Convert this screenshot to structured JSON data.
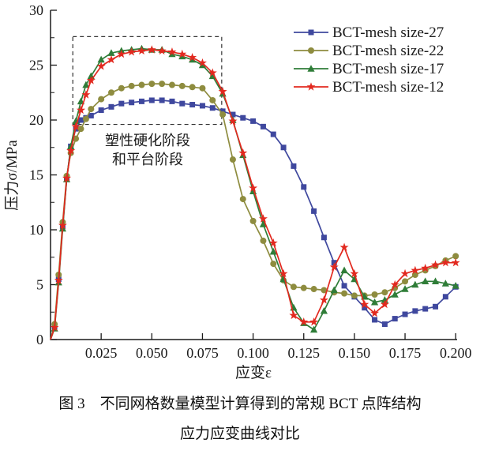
{
  "figure": {
    "caption_line1": "图 3　不同网格数量模型计算得到的常规 BCT 点阵结构",
    "caption_line2": "应力应变曲线对比"
  },
  "chart_data": {
    "type": "line",
    "title": "",
    "xlabel": "应变ε",
    "ylabel": "压力σ/MPa",
    "xlim": [
      0,
      0.2
    ],
    "ylim": [
      0,
      30
    ],
    "grid": false,
    "legend_position": "top-right",
    "text_color": "#1a1a1a",
    "y_ticks": [
      {
        "v": 0,
        "label": "0"
      },
      {
        "v": 5,
        "label": "5"
      },
      {
        "v": 10,
        "label": "10"
      },
      {
        "v": 15,
        "label": "15"
      },
      {
        "v": 20,
        "label": "20"
      },
      {
        "v": 25,
        "label": "25"
      },
      {
        "v": 30,
        "label": "30"
      }
    ],
    "y_minor_step": 2.5,
    "x_ticks": [
      {
        "v": 0.025,
        "label": "0.025"
      },
      {
        "v": 0.05,
        "label": "0.050"
      },
      {
        "v": 0.075,
        "label": "0.075"
      },
      {
        "v": 0.1,
        "label": "0.100"
      },
      {
        "v": 0.125,
        "label": "0.125"
      },
      {
        "v": 0.15,
        "label": "0.150"
      },
      {
        "v": 0.175,
        "label": "0.175"
      },
      {
        "v": 0.2,
        "label": "0.200"
      }
    ],
    "annotation": {
      "text_lines": [
        "塑性硬化阶段",
        "和平台阶段"
      ],
      "box": {
        "x0": 0.011,
        "x1": 0.0845,
        "y0": 19.6,
        "y1": 27.6
      }
    },
    "x": [
      0,
      0.002,
      0.004,
      0.006,
      0.008,
      0.01,
      0.0125,
      0.015,
      0.0175,
      0.02,
      0.025,
      0.03,
      0.035,
      0.04,
      0.045,
      0.05,
      0.055,
      0.06,
      0.065,
      0.07,
      0.075,
      0.08,
      0.085,
      0.09,
      0.095,
      0.1,
      0.105,
      0.11,
      0.115,
      0.12,
      0.125,
      0.13,
      0.135,
      0.14,
      0.145,
      0.15,
      0.155,
      0.16,
      0.165,
      0.17,
      0.175,
      0.18,
      0.185,
      0.19,
      0.195,
      0.2
    ],
    "series": [
      {
        "name": "BCT-mesh size-27",
        "color": "#3f489e",
        "marker": "square",
        "values": [
          0,
          1.2,
          5.5,
          10.3,
          14.6,
          17.6,
          19.2,
          20.0,
          20.2,
          20.4,
          20.9,
          21.2,
          21.5,
          21.6,
          21.7,
          21.8,
          21.8,
          21.7,
          21.5,
          21.4,
          21.3,
          21.1,
          20.8,
          20.5,
          20.2,
          19.9,
          19.4,
          18.7,
          17.5,
          15.8,
          13.9,
          11.7,
          9.3,
          7.0,
          4.9,
          3.9,
          2.9,
          1.8,
          1.4,
          1.9,
          2.3,
          2.6,
          2.8,
          3.0,
          3.9,
          4.8
        ]
      },
      {
        "name": "BCT-mesh size-22",
        "color": "#8e8c3f",
        "marker": "circle",
        "values": [
          0,
          1.4,
          5.9,
          10.7,
          14.9,
          17.0,
          18.3,
          19.2,
          20.1,
          21.0,
          21.9,
          22.5,
          22.9,
          23.1,
          23.2,
          23.3,
          23.3,
          23.2,
          23.1,
          23.0,
          22.9,
          21.8,
          20.5,
          16.4,
          12.8,
          10.8,
          9.0,
          6.9,
          5.4,
          4.8,
          4.7,
          4.6,
          4.5,
          4.3,
          4.2,
          4.0,
          4.0,
          4.1,
          4.3,
          4.7,
          5.3,
          5.9,
          6.3,
          6.7,
          7.2,
          7.6
        ]
      },
      {
        "name": "BCT-mesh size-17",
        "color": "#2f7d38",
        "marker": "triangle",
        "values": [
          0,
          1.0,
          5.2,
          10.1,
          14.6,
          17.6,
          19.9,
          21.7,
          23.2,
          24.0,
          25.5,
          26.1,
          26.3,
          26.4,
          26.5,
          26.4,
          26.4,
          26.0,
          25.8,
          25.5,
          25.0,
          24.0,
          22.4,
          20.0,
          16.8,
          13.5,
          10.5,
          8.0,
          5.5,
          2.9,
          1.5,
          0.9,
          2.6,
          4.5,
          6.3,
          5.5,
          3.9,
          3.4,
          3.6,
          4.1,
          4.6,
          5.0,
          5.3,
          5.3,
          5.1,
          4.9
        ]
      },
      {
        "name": "BCT-mesh size-12",
        "color": "#e2291f",
        "marker": "star",
        "values": [
          0,
          1.1,
          5.4,
          10.4,
          14.7,
          17.2,
          19.4,
          20.9,
          22.3,
          23.6,
          24.9,
          25.5,
          26.0,
          26.2,
          26.3,
          26.4,
          26.3,
          26.2,
          26.0,
          25.7,
          25.2,
          24.3,
          22.6,
          19.9,
          17.0,
          13.8,
          11.0,
          8.8,
          6.0,
          2.2,
          1.6,
          1.6,
          3.6,
          6.6,
          8.4,
          6.0,
          3.2,
          2.4,
          3.2,
          5.0,
          6.0,
          6.3,
          6.5,
          6.8,
          7.0,
          7.0
        ]
      }
    ]
  }
}
